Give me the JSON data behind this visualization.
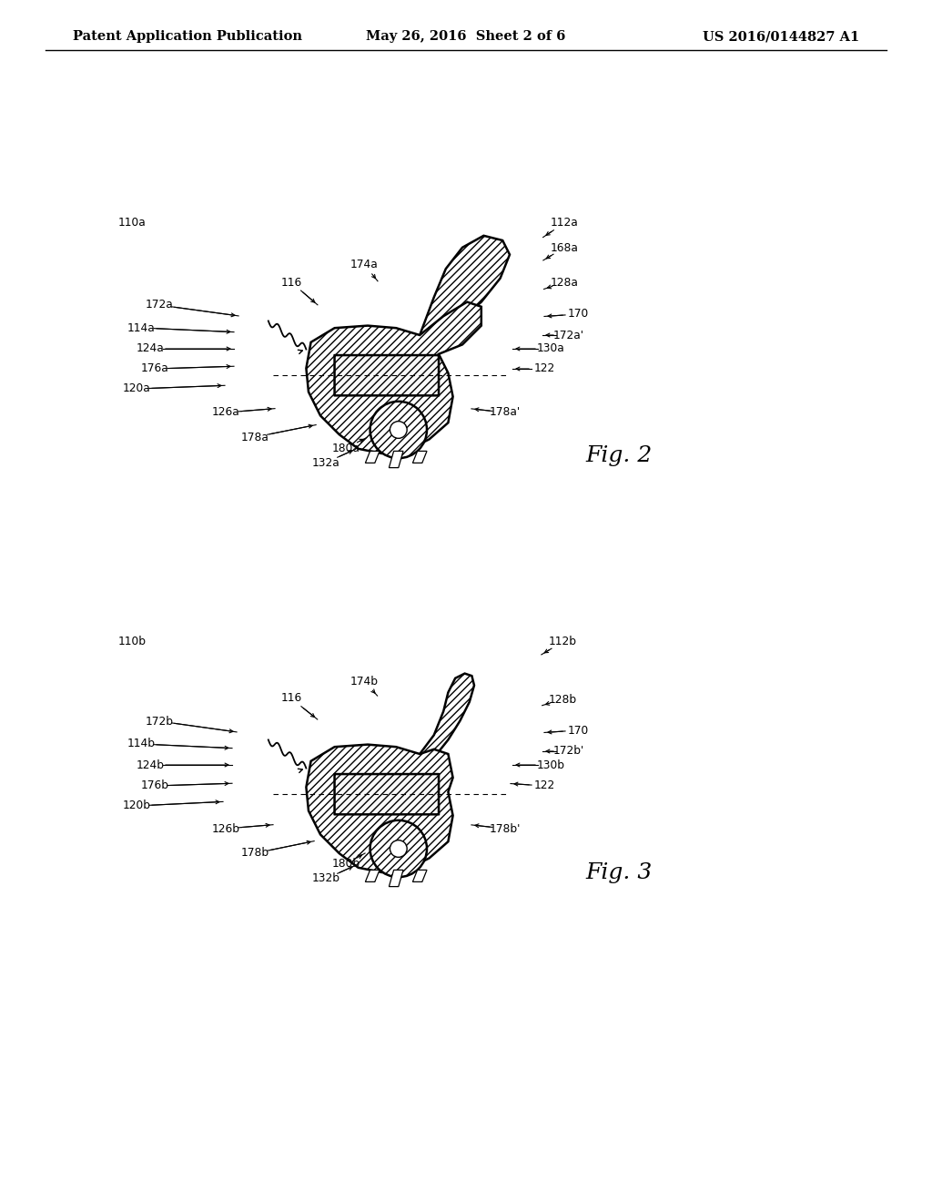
{
  "bg_color": "#ffffff",
  "line_color": "#000000",
  "header": {
    "left": "Patent Application Publication",
    "center": "May 26, 2016  Sheet 2 of 6",
    "right": "US 2016/0144827 A1",
    "fontsize": 10.5
  },
  "fig2_title": "Fig. 2",
  "fig3_title": "Fig. 3"
}
